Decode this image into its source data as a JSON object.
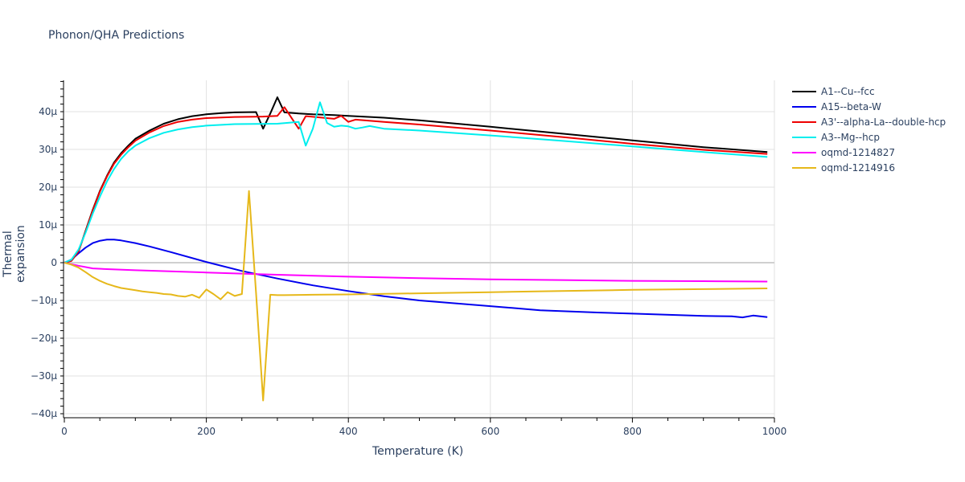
{
  "title": "Phonon/QHA Predictions",
  "chart_data": {
    "type": "line",
    "title": "Phonon/QHA Predictions",
    "xlabel": "Temperature (K)",
    "ylabel": "Thermal expansion",
    "xlim": [
      0,
      1000
    ],
    "ylim": [
      -4.1e-05,
      4.8e-05
    ],
    "grid": true,
    "legend_position": "right",
    "x_ticks": [
      "0",
      "200",
      "400",
      "600",
      "800",
      "1000"
    ],
    "y_ticks": [
      "40μ",
      "30μ",
      "20μ",
      "10μ",
      "0",
      "−10μ",
      "−20μ",
      "−30μ",
      "−40μ"
    ],
    "series": [
      {
        "name": "A1--Cu--fcc",
        "color": "#000000",
        "x": [
          0,
          10,
          20,
          30,
          40,
          50,
          60,
          70,
          80,
          90,
          100,
          120,
          140,
          160,
          180,
          200,
          220,
          240,
          270,
          280,
          290,
          300,
          310,
          330,
          350,
          380,
          400,
          450,
          500,
          600,
          700,
          800,
          900,
          990
        ],
        "y": [
          0,
          0.5,
          3,
          8.5,
          14,
          19,
          23,
          26.5,
          29,
          31,
          32.8,
          35,
          36.8,
          38,
          38.8,
          39.3,
          39.6,
          39.8,
          39.9,
          35.5,
          39.5,
          43.8,
          39.8,
          39.5,
          39.3,
          39.1,
          38.9,
          38.4,
          37.7,
          36,
          34.2,
          32.4,
          30.6,
          29.3
        ]
      },
      {
        "name": "A15--beta-W",
        "color": "#0000ee",
        "x": [
          0,
          10,
          20,
          30,
          40,
          50,
          60,
          70,
          80,
          100,
          120,
          150,
          200,
          250,
          300,
          350,
          400,
          450,
          500,
          600,
          670,
          750,
          800,
          900,
          940,
          955,
          970,
          990
        ],
        "y": [
          0,
          0.8,
          2.5,
          4,
          5.2,
          5.8,
          6.1,
          6.1,
          5.9,
          5.2,
          4.3,
          2.8,
          0.2,
          -2.2,
          -4.2,
          -6,
          -7.5,
          -8.9,
          -10,
          -11.5,
          -12.6,
          -13.2,
          -13.5,
          -14.1,
          -14.2,
          -14.5,
          -14.0,
          -14.4
        ]
      },
      {
        "name": "A3'--alpha-La--double-hcp",
        "color": "#ee0000",
        "x": [
          0,
          10,
          20,
          30,
          40,
          50,
          60,
          70,
          80,
          90,
          100,
          120,
          140,
          160,
          180,
          200,
          240,
          280,
          300,
          310,
          330,
          340,
          380,
          390,
          400,
          410,
          450,
          500,
          600,
          700,
          800,
          900,
          990
        ],
        "y": [
          0,
          0.5,
          3,
          8.3,
          13.8,
          18.8,
          22.8,
          26.2,
          28.6,
          30.6,
          32.3,
          34.5,
          36.2,
          37.3,
          37.9,
          38.3,
          38.6,
          38.7,
          38.9,
          41.2,
          35.5,
          38.8,
          38.1,
          38.9,
          37.3,
          37.9,
          37.3,
          36.6,
          35,
          33.3,
          31.5,
          29.9,
          28.8
        ]
      },
      {
        "name": "A3--Mg--hcp",
        "color": "#00eeee",
        "x": [
          0,
          10,
          20,
          30,
          40,
          50,
          60,
          70,
          80,
          90,
          100,
          120,
          140,
          160,
          180,
          200,
          240,
          300,
          330,
          340,
          350,
          360,
          370,
          380,
          390,
          400,
          410,
          420,
          430,
          450,
          500,
          600,
          700,
          800,
          900,
          990
        ],
        "y": [
          0,
          0.8,
          3.5,
          8,
          13,
          17.5,
          21.5,
          24.8,
          27.5,
          29.5,
          31,
          33,
          34.4,
          35.3,
          35.9,
          36.3,
          36.7,
          36.8,
          37.3,
          31,
          35.5,
          42.5,
          37,
          36,
          36.3,
          36.1,
          35.5,
          35.8,
          36.2,
          35.5,
          35,
          33.7,
          32.3,
          30.8,
          29.3,
          28
        ]
      },
      {
        "name": "oqmd-1214827",
        "color": "#ff00ff",
        "x": [
          0,
          20,
          40,
          60,
          100,
          200,
          300,
          400,
          500,
          600,
          700,
          800,
          900,
          990
        ],
        "y": [
          0,
          -0.8,
          -1.5,
          -1.7,
          -2,
          -2.6,
          -3.2,
          -3.7,
          -4.1,
          -4.4,
          -4.6,
          -4.8,
          -4.9,
          -5
        ]
      },
      {
        "name": "oqmd-1214916",
        "color": "#e6b81a",
        "x": [
          0,
          10,
          20,
          30,
          40,
          50,
          60,
          70,
          80,
          90,
          100,
          110,
          120,
          130,
          140,
          150,
          160,
          170,
          180,
          190,
          200,
          210,
          220,
          230,
          240,
          250,
          260,
          270,
          280,
          290,
          300,
          310,
          350,
          400,
          500,
          600,
          700,
          800,
          900,
          990
        ],
        "y": [
          0,
          -0.5,
          -1.3,
          -2.5,
          -3.8,
          -4.8,
          -5.6,
          -6.2,
          -6.7,
          -7,
          -7.3,
          -7.6,
          -7.8,
          -8,
          -8.3,
          -8.4,
          -8.8,
          -9,
          -8.5,
          -9.3,
          -7.1,
          -8.3,
          -9.7,
          -7.8,
          -8.8,
          -8.3,
          19,
          -8,
          -36.5,
          -8.5,
          -8.6,
          -8.6,
          -8.5,
          -8.4,
          -8.1,
          -7.8,
          -7.5,
          -7.2,
          -7,
          -6.8
        ]
      }
    ]
  },
  "legend": {
    "items": [
      {
        "label": "A1--Cu--fcc",
        "color": "#000000"
      },
      {
        "label": "A15--beta-W",
        "color": "#0000ee"
      },
      {
        "label": "A3'--alpha-La--double-hcp",
        "color": "#ee0000"
      },
      {
        "label": "A3--Mg--hcp",
        "color": "#00eeee"
      },
      {
        "label": "oqmd-1214827",
        "color": "#ff00ff"
      },
      {
        "label": "oqmd-1214916",
        "color": "#e6b81a"
      }
    ]
  },
  "axes": {
    "xlabel": "Temperature (K)",
    "ylabel": "Thermal expansion"
  }
}
